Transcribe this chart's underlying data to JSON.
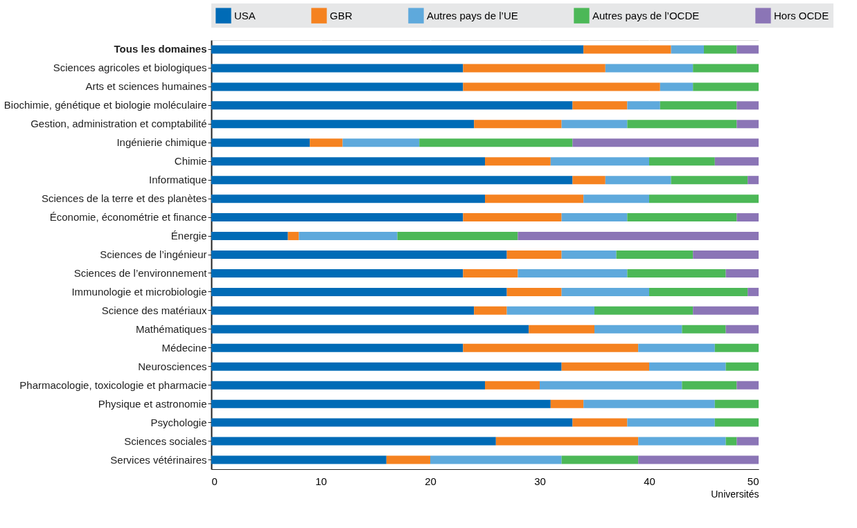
{
  "chart_data": {
    "type": "bar",
    "orientation": "horizontal",
    "stacked": true,
    "xlabel": "Universités",
    "categories": [
      "Tous les domaines",
      "Sciences agricoles et biologiques",
      "Arts et sciences humaines",
      "Biochimie, génétique et biologie moléculaire",
      "Gestion, administration et comptabilité",
      "Ingénierie chimique",
      "Chimie",
      "Informatique",
      "Sciences de la terre et des planètes",
      "Économie, économétrie et finance",
      "Énergie",
      "Sciences de l’ingénieur",
      "Sciences de l’environnement",
      "Immunologie et microbiologie",
      "Science des matériaux",
      "Mathématiques",
      "Médecine",
      "Neurosciences",
      "Pharmacologie, toxicologie et pharmacie",
      "Physique et astronomie",
      "Psychologie",
      "Sciences sociales",
      "Services vétérinaires"
    ],
    "series": [
      {
        "name": "USA",
        "color": "#006bb6",
        "values": [
          34,
          23,
          23,
          33,
          24,
          9,
          25,
          33,
          25,
          23,
          7,
          27,
          23,
          27,
          24,
          29,
          23,
          32,
          25,
          31,
          33,
          26,
          16
        ]
      },
      {
        "name": "GBR",
        "color": "#f58220",
        "values": [
          8,
          13,
          18,
          5,
          8,
          3,
          6,
          3,
          9,
          9,
          1,
          5,
          5,
          5,
          3,
          6,
          16,
          8,
          5,
          3,
          5,
          13,
          4
        ]
      },
      {
        "name": "Autres pays de l’UE",
        "color": "#5ea9dc",
        "values": [
          3,
          8,
          3,
          3,
          6,
          7,
          9,
          6,
          6,
          6,
          9,
          5,
          10,
          8,
          8,
          8,
          7,
          7,
          13,
          12,
          8,
          8,
          12
        ]
      },
      {
        "name": "Autres pays de l’OCDE",
        "color": "#4cb857",
        "values": [
          3,
          6,
          6,
          7,
          10,
          14,
          6,
          7,
          10,
          10,
          11,
          7,
          9,
          9,
          9,
          4,
          4,
          3,
          5,
          4,
          4,
          1,
          7
        ]
      },
      {
        "name": "Hors OCDE",
        "color": "#8b75b6",
        "values": [
          2,
          0,
          0,
          2,
          2,
          17,
          4,
          1,
          0,
          2,
          22,
          6,
          3,
          1,
          6,
          3,
          0,
          0,
          2,
          0,
          0,
          2,
          11
        ]
      }
    ],
    "xlim": [
      0,
      50
    ],
    "xticks": [
      0,
      10,
      20,
      30,
      40,
      50
    ],
    "grid": "x",
    "legend": "top"
  }
}
